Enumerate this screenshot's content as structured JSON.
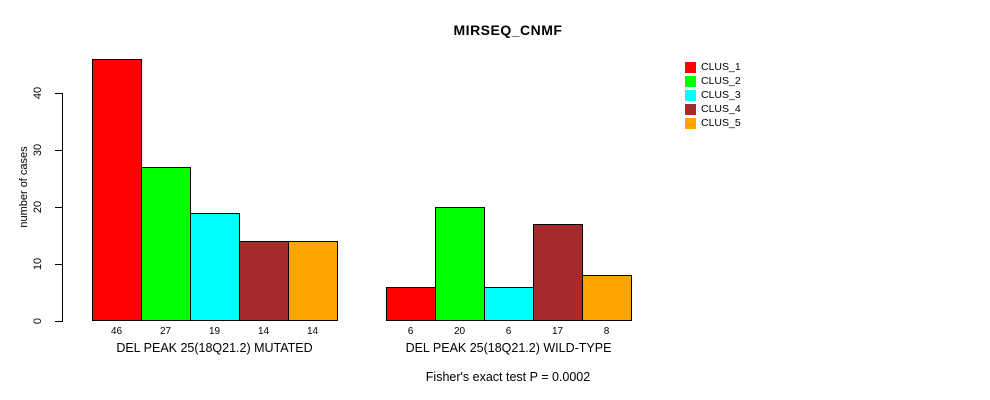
{
  "chart_data": {
    "type": "bar",
    "title": "MIRSEQ_CNMF",
    "ylabel": "number of cases",
    "xlabel": "",
    "ylim": [
      0,
      46
    ],
    "yticks": [
      0,
      10,
      20,
      30,
      40
    ],
    "grid": false,
    "legend_position": "right",
    "categories": [
      "DEL PEAK 25(18Q21.2) MUTATED",
      "DEL PEAK 25(18Q21.2) WILD-TYPE"
    ],
    "series": [
      {
        "name": "CLUS_1",
        "color": "#FF0000",
        "values": [
          46,
          6
        ]
      },
      {
        "name": "CLUS_2",
        "color": "#00FF00",
        "values": [
          27,
          20
        ]
      },
      {
        "name": "CLUS_3",
        "color": "#00FFFF",
        "values": [
          19,
          6
        ]
      },
      {
        "name": "CLUS_4",
        "color": "#A52A2A",
        "values": [
          14,
          17
        ]
      },
      {
        "name": "CLUS_5",
        "color": "#FFA500",
        "values": [
          14,
          8
        ]
      }
    ],
    "bar_value_labels": [
      [
        46,
        27,
        19,
        14,
        14
      ],
      [
        6,
        20,
        6,
        17,
        8
      ]
    ],
    "annotation": "Fisher's exact test P = 0.0002"
  }
}
